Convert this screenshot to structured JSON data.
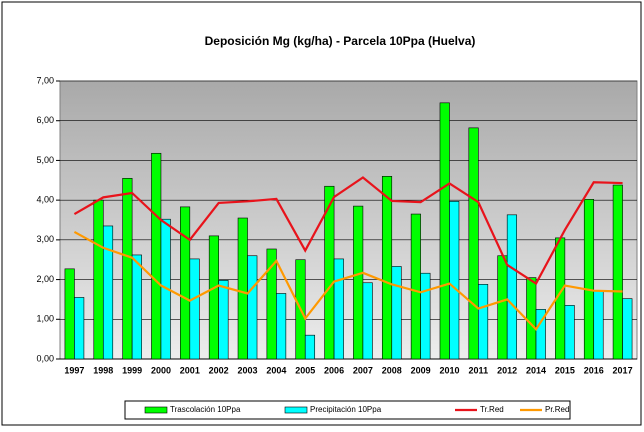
{
  "chart_data": {
    "type": "bar",
    "title": "Deposición Mg (kg/ha) - Parcela 10Ppa (Huelva)",
    "categories": [
      "1997",
      "1998",
      "1999",
      "2000",
      "2001",
      "2002",
      "2003",
      "2004",
      "2005",
      "2006",
      "2007",
      "2008",
      "2009",
      "2010",
      "2011",
      "2012",
      "2014",
      "2015",
      "2016",
      "2017"
    ],
    "series": [
      {
        "name": "Trascolación  10Ppa",
        "kind": "bar",
        "color": "#00ff00",
        "values": [
          2.27,
          4.0,
          4.55,
          5.18,
          3.83,
          3.1,
          3.55,
          2.77,
          2.5,
          4.35,
          3.85,
          4.6,
          3.65,
          6.45,
          5.82,
          2.6,
          2.05,
          3.05,
          4.02,
          4.38
        ]
      },
      {
        "name": "Precipitación 10Ppa",
        "kind": "bar",
        "color": "#00ffff",
        "values": [
          1.55,
          3.35,
          2.62,
          3.52,
          2.52,
          1.98,
          2.6,
          1.65,
          0.6,
          2.52,
          1.92,
          2.33,
          2.16,
          3.97,
          1.88,
          3.63,
          1.25,
          1.35,
          1.72,
          1.52
        ]
      },
      {
        "name": "Tr.Red",
        "kind": "line",
        "color": "#e8131b",
        "values": [
          3.65,
          4.07,
          4.18,
          3.5,
          3.0,
          3.93,
          3.97,
          4.03,
          2.73,
          4.08,
          4.57,
          3.98,
          3.95,
          4.42,
          3.95,
          2.37,
          1.9,
          3.25,
          4.45,
          4.43
        ]
      },
      {
        "name": "Pr.Red",
        "kind": "line",
        "color": "#ff9900",
        "values": [
          3.2,
          2.8,
          2.55,
          1.85,
          1.47,
          1.85,
          1.65,
          2.47,
          1.02,
          1.95,
          2.17,
          1.88,
          1.68,
          1.9,
          1.27,
          1.5,
          0.75,
          1.85,
          1.72,
          1.7
        ]
      }
    ],
    "ylim": [
      0,
      7
    ],
    "yticks": [
      {
        "value": 0,
        "label": "0,00"
      },
      {
        "value": 1,
        "label": "1,00"
      },
      {
        "value": 2,
        "label": "2,00"
      },
      {
        "value": 3,
        "label": "3,00"
      },
      {
        "value": 4,
        "label": "4,00"
      },
      {
        "value": 5,
        "label": "5,00"
      },
      {
        "value": 6,
        "label": "6,00"
      },
      {
        "value": 7,
        "label": "7,00"
      }
    ],
    "grid": true
  }
}
